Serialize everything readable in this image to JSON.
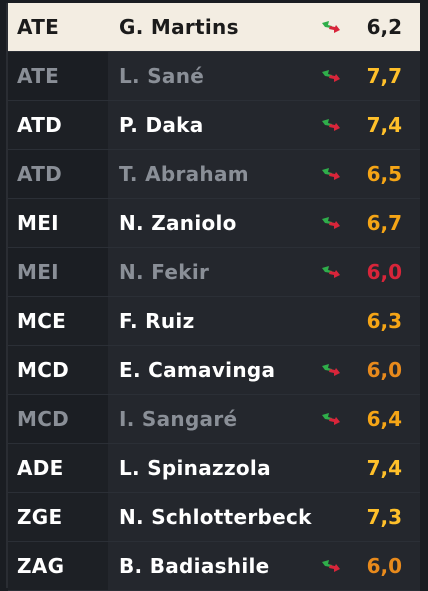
{
  "players": [
    {
      "position": "ATE",
      "name": "G. Martins",
      "rating": "6,2",
      "trend": "form-arrow-icon",
      "state": "selected",
      "tone": "dark"
    },
    {
      "position": "ATE",
      "name": "L. Sané",
      "rating": "7,7",
      "trend": "form-arrow-icon",
      "state": "dim",
      "tone": "high"
    },
    {
      "position": "ATD",
      "name": "P. Daka",
      "rating": "7,4",
      "trend": "form-arrow-icon",
      "state": "normal",
      "tone": "high"
    },
    {
      "position": "ATD",
      "name": "T. Abraham",
      "rating": "6,5",
      "trend": "form-arrow-icon",
      "state": "dim",
      "tone": "mid"
    },
    {
      "position": "MEI",
      "name": "N. Zaniolo",
      "rating": "6,7",
      "trend": "form-arrow-icon",
      "state": "normal",
      "tone": "mid"
    },
    {
      "position": "MEI",
      "name": "N. Fekir",
      "rating": "6,0",
      "trend": "form-arrow-icon",
      "state": "dim",
      "tone": "red"
    },
    {
      "position": "MCE",
      "name": "F. Ruiz",
      "rating": "6,3",
      "trend": "",
      "state": "normal",
      "tone": "mid"
    },
    {
      "position": "MCD",
      "name": "E. Camavinga",
      "rating": "6,0",
      "trend": "form-arrow-icon",
      "state": "normal",
      "tone": "low"
    },
    {
      "position": "MCD",
      "name": "I. Sangaré",
      "rating": "6,4",
      "trend": "form-arrow-icon",
      "state": "dim",
      "tone": "mid"
    },
    {
      "position": "ADE",
      "name": "L. Spinazzola",
      "rating": "7,4",
      "trend": "",
      "state": "normal",
      "tone": "high"
    },
    {
      "position": "ZGE",
      "name": "N. Schlotterbeck",
      "rating": "7,3",
      "trend": "",
      "state": "normal",
      "tone": "high"
    },
    {
      "position": "ZAG",
      "name": "B. Badiashile",
      "rating": "6,0",
      "trend": "form-arrow-icon",
      "state": "normal",
      "tone": "low"
    }
  ],
  "colors": {
    "accent_gold": "#ffc02a",
    "accent_orange": "#f5a516",
    "accent_red": "#d8253a",
    "arrow_green": "#2fae4a",
    "arrow_red": "#d8253a"
  }
}
